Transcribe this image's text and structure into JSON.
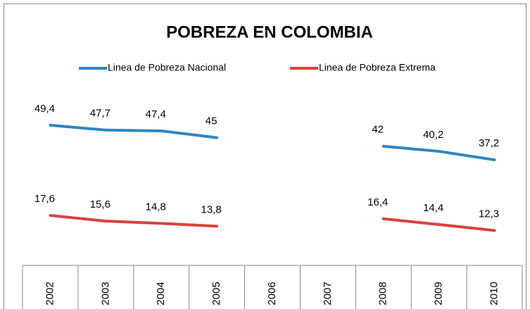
{
  "chart_data": {
    "type": "line",
    "title": "POBREZA EN COLOMBIA",
    "categories": [
      "2002",
      "2003",
      "2004",
      "2005",
      "2006",
      "2007",
      "2008",
      "2009",
      "2010"
    ],
    "series": [
      {
        "name": "Linea de Pobreza Nacional",
        "color": "#2f86c2",
        "values": [
          49.4,
          47.7,
          47.4,
          45,
          null,
          null,
          42,
          40.2,
          37.2
        ],
        "value_labels": [
          "49,4",
          "47,7",
          "47,4",
          "45",
          null,
          null,
          "42",
          "40,2",
          "37,2"
        ]
      },
      {
        "name": "Linea de Pobreza Extrema",
        "color": "#d9413e",
        "values": [
          17.6,
          15.6,
          14.8,
          13.8,
          null,
          null,
          16.4,
          14.4,
          12.3
        ],
        "value_labels": [
          "17,6",
          "15,6",
          "14,8",
          "13,8",
          null,
          null,
          "16,4",
          "14,4",
          "12,3"
        ]
      }
    ]
  }
}
